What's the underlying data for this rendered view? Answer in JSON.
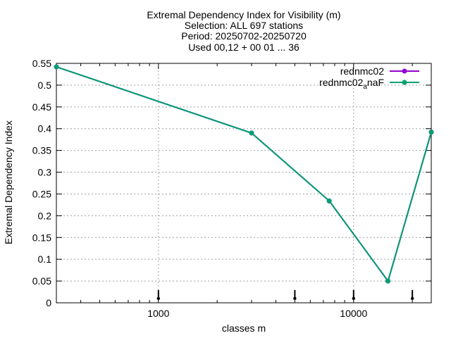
{
  "chart_data": {
    "type": "line",
    "title": [
      "Extremal Dependency Index  for Visibility (m)",
      "Selection: ALL    697 stations",
      "Period: 20250702-20250720",
      "Used 00,12 + 00 01 ... 36"
    ],
    "xlabel": "classes m",
    "ylabel": "Extremal Dependency Index",
    "xscale": "log",
    "xlim": [
      300,
      25000
    ],
    "ylim": [
      0,
      0.55
    ],
    "xticks": [
      {
        "value": 1000,
        "label": "1000"
      },
      {
        "value": 10000,
        "label": "10000"
      }
    ],
    "yticks": [
      {
        "value": 0,
        "label": "0"
      },
      {
        "value": 0.05,
        "label": "0.05"
      },
      {
        "value": 0.1,
        "label": "0.1"
      },
      {
        "value": 0.15,
        "label": "0.15"
      },
      {
        "value": 0.2,
        "label": "0.2"
      },
      {
        "value": 0.25,
        "label": "0.25"
      },
      {
        "value": 0.3,
        "label": "0.3"
      },
      {
        "value": 0.35,
        "label": "0.35"
      },
      {
        "value": 0.4,
        "label": "0.4"
      },
      {
        "value": 0.45,
        "label": "0.45"
      },
      {
        "value": 0.5,
        "label": "0.5"
      },
      {
        "value": 0.55,
        "label": "0.55"
      }
    ],
    "grid": true,
    "legend_position": "top-right",
    "series": [
      {
        "name": "rednmc02",
        "color": "#9400d3",
        "x": [
          300,
          3000,
          7500,
          15000,
          25000
        ],
        "y": [
          0.542,
          0.39,
          0.234,
          0.05,
          0.392
        ]
      },
      {
        "name": "rednmc02",
        "name_sub": "a",
        "name_suffix": "naF",
        "color": "#009e73",
        "x": [
          300,
          3000,
          7500,
          15000,
          25000
        ],
        "y": [
          0.542,
          0.39,
          0.234,
          0.05,
          0.392
        ]
      }
    ],
    "sample_markers": {
      "color": "#000000",
      "x": [
        1000,
        5000,
        10000,
        20000
      ],
      "y": [
        0.01,
        0.01,
        0.01,
        0.01
      ]
    }
  }
}
